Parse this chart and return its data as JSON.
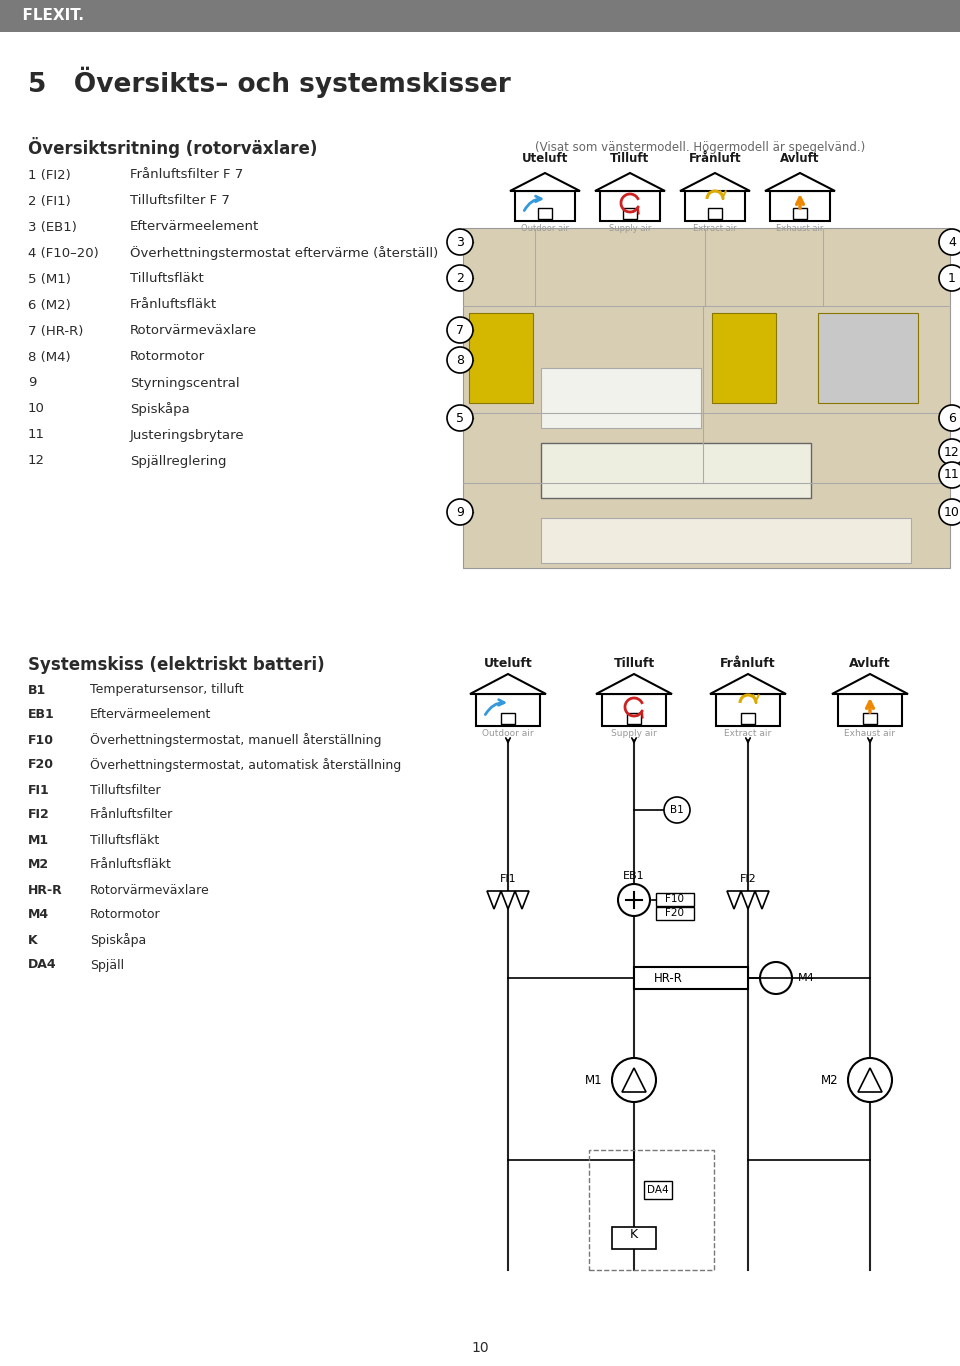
{
  "page_title": "5   Översikts– och systemskisser",
  "header_bg": "#7a7a7a",
  "header_text": "  FLEXIT.",
  "background": "#ffffff",
  "section1_title": "Översiktsritning (rotorväxlare)",
  "items_col1": [
    [
      "1 (FI2)",
      "Frånluftsfilter F 7"
    ],
    [
      "2 (FI1)",
      "Tilluftsfilter F 7"
    ],
    [
      "3 (EB1)",
      "Eftervärmeelement"
    ],
    [
      "4 (F10–20)",
      "Överhettningstermostat eftervärme (återställ)"
    ],
    [
      "5 (M1)",
      "Tilluftsfläkt"
    ],
    [
      "6 (M2)",
      "Frånluftsfläkt"
    ],
    [
      "7 (HR-R)",
      "Rotorvärmeväxlare"
    ],
    [
      "8 (M4)",
      "Rotormotor"
    ],
    [
      "9",
      "Styrningscentral"
    ],
    [
      "10",
      "Spiskåpa"
    ],
    [
      "11",
      "Justeringsbrytare"
    ],
    [
      "12",
      "Spjällreglering"
    ]
  ],
  "note_text": "(Visat som vänstermodell. Högermodell är spegelvänd.)",
  "air_labels": [
    "Uteluft",
    "Tilluft",
    "Frånluft",
    "Avluft"
  ],
  "air_sublabels": [
    "Outdoor air",
    "Supply air",
    "Extract air",
    "Exhaust air"
  ],
  "section2_title": "Systemskiss (elektriskt batteri)",
  "items_col2": [
    [
      "B1",
      "Temperatursensor, tilluft"
    ],
    [
      "EB1",
      "Eftervärmeelement"
    ],
    [
      "F10",
      "Överhettningstermostat, manuell återställning"
    ],
    [
      "F20",
      "Överhettningstermostat, automatisk återställning"
    ],
    [
      "FI1",
      "Tilluftsfilter"
    ],
    [
      "FI2",
      "Frånluftsfilter"
    ],
    [
      "M1",
      "Tilluftsfläkt"
    ],
    [
      "M2",
      "Frånluftsfläkt"
    ],
    [
      "HR-R",
      "Rotorvärmeväxlare"
    ],
    [
      "M4",
      "Rotormotor"
    ],
    [
      "K",
      "Spiskåpa"
    ],
    [
      "DA4",
      "Spjäll"
    ]
  ],
  "page_number": "10",
  "text_color": "#2a2a2a",
  "gray_text": "#666666",
  "light_gray": "#999999",
  "icon_arrow_colors": [
    "#3399dd",
    "#cc2222",
    "#ddaa00",
    "#ee8800"
  ],
  "callout_positions": [
    [
      3,
      "left",
      310,
      238
    ],
    [
      4,
      "right",
      238,
      238
    ],
    [
      2,
      "left",
      310,
      272
    ],
    [
      1,
      "right",
      272,
      272
    ],
    [
      7,
      "left",
      310,
      318
    ],
    [
      8,
      "left",
      310,
      353
    ],
    [
      5,
      "left",
      310,
      412
    ],
    [
      6,
      "right",
      238,
      412
    ],
    [
      12,
      "right",
      238,
      453
    ],
    [
      11,
      "right",
      238,
      473
    ],
    [
      9,
      "left",
      310,
      500
    ],
    [
      10,
      "right",
      238,
      510
    ]
  ]
}
